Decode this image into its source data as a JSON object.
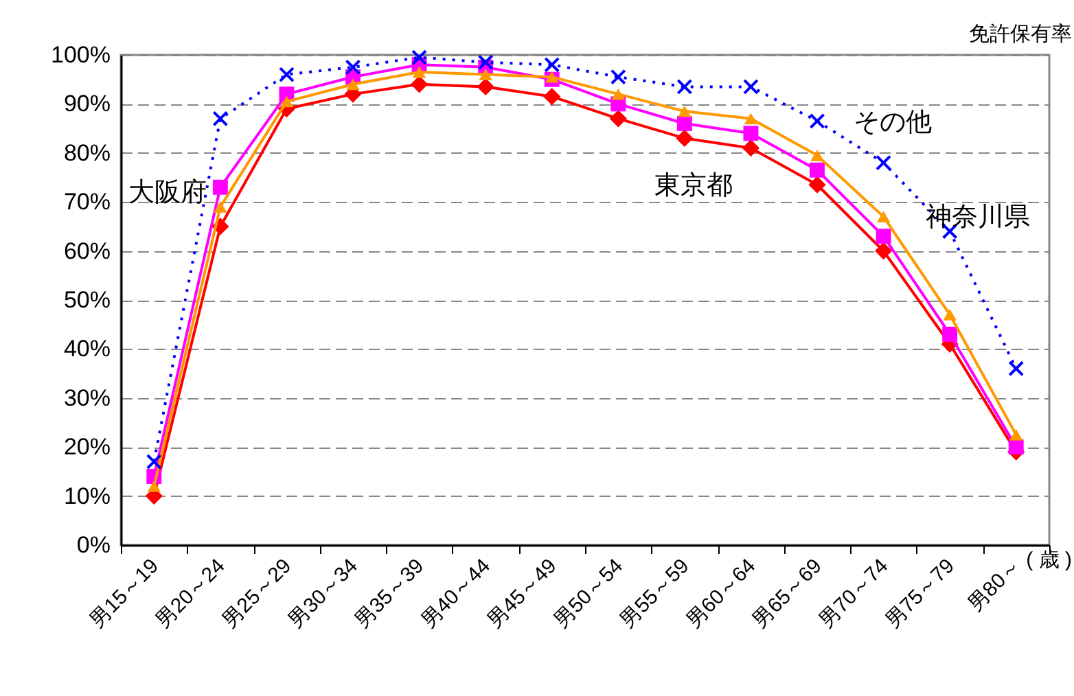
{
  "chart_data": {
    "type": "line",
    "ylabel": "免許保有率",
    "xlabel": "( 歳 )",
    "categories": [
      "男15～19",
      "男20～24",
      "男25～29",
      "男30～34",
      "男35～39",
      "男40～44",
      "男45～49",
      "男50～54",
      "男55～59",
      "男60～64",
      "男65～69",
      "男70～74",
      "男75～79",
      "男80～"
    ],
    "series": [
      {
        "color": "#ff0000",
        "marker": "diamond",
        "line_style": "solid",
        "values": [
          10,
          65,
          89,
          92,
          94,
          93.5,
          91.5,
          87,
          83,
          81,
          73.5,
          60,
          41,
          19
        ]
      },
      {
        "color": "#ff00ff",
        "marker": "square",
        "line_style": "solid",
        "values": [
          14,
          73,
          92,
          95.5,
          98,
          97.5,
          95,
          90,
          86,
          84,
          76.5,
          63,
          43,
          20
        ]
      },
      {
        "color": "#ff9900",
        "marker": "triangle",
        "line_style": "solid",
        "values": [
          12,
          69,
          90.5,
          94,
          96.5,
          96,
          95.5,
          92,
          88.5,
          87,
          79.5,
          67,
          47,
          22.5
        ]
      },
      {
        "color": "#0000ff",
        "marker": "cross",
        "line_style": "dotted",
        "values": [
          17,
          87,
          96,
          97.5,
          99.5,
          98.5,
          98,
          95.5,
          93.5,
          93.5,
          86.5,
          78,
          64,
          36
        ]
      }
    ],
    "annotations": [
      "大阪府",
      "東京都",
      "その他",
      "神奈川県"
    ],
    "ylim": [
      0,
      100
    ],
    "yticks": [
      {
        "value": 0,
        "label": "0%"
      },
      {
        "value": 10,
        "label": "10%"
      },
      {
        "value": 20,
        "label": "20%"
      },
      {
        "value": 30,
        "label": "30%"
      },
      {
        "value": 40,
        "label": "40%"
      },
      {
        "value": 50,
        "label": "50%"
      },
      {
        "value": 60,
        "label": "60%"
      },
      {
        "value": 70,
        "label": "70%"
      },
      {
        "value": 80,
        "label": "80%"
      },
      {
        "value": 90,
        "label": "90%"
      },
      {
        "value": 100,
        "label": "100%"
      }
    ],
    "grid": "y"
  }
}
